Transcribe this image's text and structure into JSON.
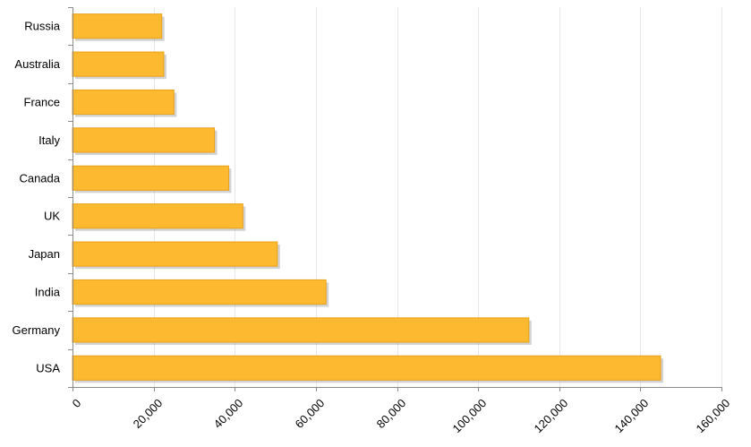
{
  "chart_data": {
    "type": "bar",
    "orientation": "horizontal",
    "title": "",
    "xlabel": "",
    "ylabel": "",
    "categories": [
      "Russia",
      "Australia",
      "France",
      "Italy",
      "Canada",
      "UK",
      "Japan",
      "India",
      "Germany",
      "USA"
    ],
    "values": [
      22000,
      22500,
      25000,
      35000,
      38500,
      42000,
      50500,
      62500,
      112500,
      145000
    ],
    "xlim": [
      0,
      160000
    ],
    "x_ticks": [
      0,
      20000,
      40000,
      60000,
      80000,
      100000,
      120000,
      140000,
      160000
    ],
    "x_tick_labels": [
      "0",
      "20,000",
      "40,000",
      "60,000",
      "80,000",
      "100,000",
      "120,000",
      "140,000",
      "160,000"
    ],
    "grid": true,
    "legend": "none",
    "bar_color": "#FDB930",
    "bar_edge_color": "#E8A21A",
    "bar_shadow_color": "#9E9E9E"
  }
}
